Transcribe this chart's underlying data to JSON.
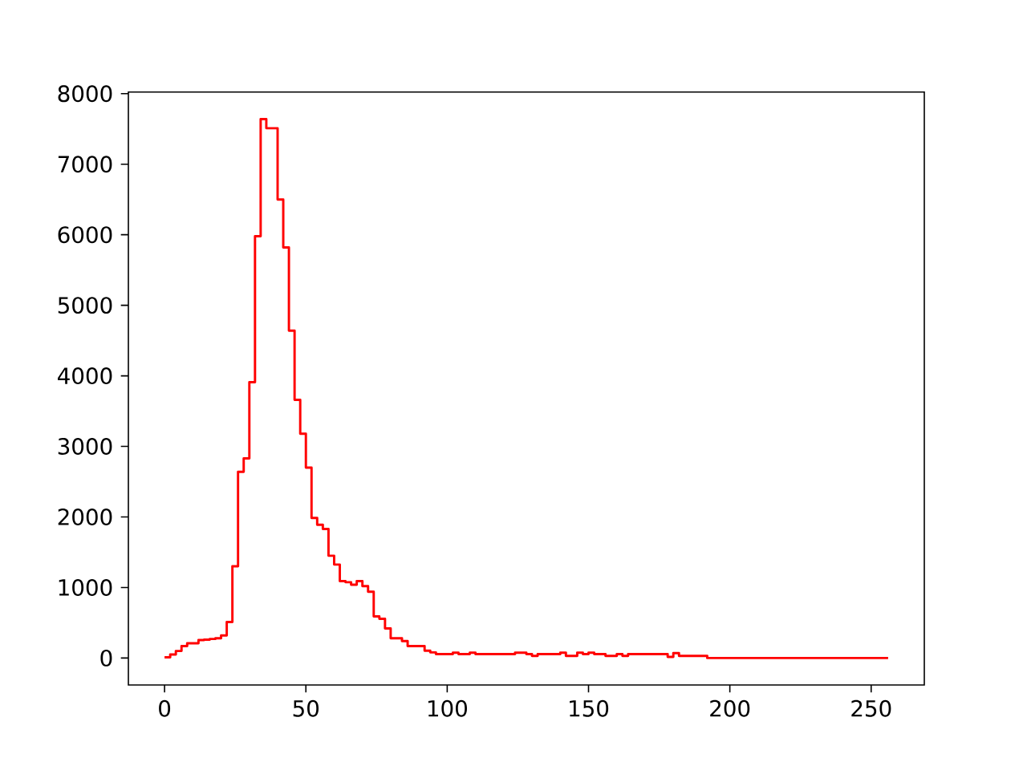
{
  "chart_data": {
    "type": "histogram",
    "bins": [
      0,
      2,
      4,
      6,
      8,
      10,
      12,
      14,
      16,
      18,
      20,
      22,
      24,
      26,
      28,
      30,
      32,
      34,
      36,
      38,
      40,
      42,
      44,
      46,
      48,
      50,
      52,
      54,
      56,
      58,
      60,
      62,
      64,
      66,
      68,
      70,
      72,
      74,
      76,
      78,
      80,
      82,
      84,
      86,
      88,
      90,
      92,
      94,
      96,
      98,
      100,
      102,
      104,
      106,
      108,
      110,
      112,
      114,
      116,
      118,
      120,
      122,
      124,
      126,
      128,
      130,
      132,
      134,
      136,
      138,
      140,
      142,
      144,
      146,
      148,
      150,
      152,
      154,
      156,
      158,
      160,
      162,
      164,
      166,
      168,
      170,
      172,
      174,
      176,
      178,
      180,
      182,
      184,
      186,
      188,
      190,
      192,
      194,
      196,
      198,
      200,
      202,
      204,
      206,
      208,
      210,
      212,
      214,
      216,
      218,
      220,
      222,
      224,
      226,
      228,
      230,
      232,
      234,
      236,
      238,
      240,
      242,
      244,
      246,
      248,
      250,
      252,
      254,
      256
    ],
    "values": [
      10,
      50,
      100,
      170,
      210,
      210,
      255,
      260,
      270,
      280,
      320,
      510,
      1300,
      2640,
      2830,
      3910,
      5980,
      7640,
      7510,
      7510,
      6500,
      5820,
      4640,
      3660,
      3180,
      2700,
      1985,
      1890,
      1830,
      1450,
      1325,
      1090,
      1075,
      1040,
      1090,
      1020,
      940,
      590,
      555,
      420,
      280,
      280,
      240,
      170,
      170,
      170,
      105,
      80,
      55,
      55,
      55,
      75,
      55,
      55,
      75,
      55,
      55,
      55,
      55,
      55,
      55,
      55,
      75,
      75,
      55,
      30,
      55,
      55,
      55,
      55,
      75,
      30,
      30,
      75,
      55,
      75,
      55,
      55,
      30,
      30,
      55,
      30,
      55,
      55,
      55,
      55,
      55,
      55,
      55,
      15,
      70,
      30,
      30,
      30,
      30,
      30,
      0,
      0,
      0,
      0,
      0,
      0,
      0,
      0,
      0,
      0,
      0,
      0,
      0,
      0,
      0,
      0,
      0,
      0,
      0,
      0,
      0,
      0,
      0,
      0,
      0,
      0,
      0,
      0,
      0,
      0,
      0,
      0
    ],
    "color": "#ff0000",
    "xlim": [
      -12.8,
      268.8
    ],
    "ylim": [
      -382,
      8022
    ],
    "xticks": [
      0,
      50,
      100,
      150,
      200,
      250
    ],
    "yticks": [
      0,
      1000,
      2000,
      3000,
      4000,
      5000,
      6000,
      7000,
      8000
    ]
  }
}
